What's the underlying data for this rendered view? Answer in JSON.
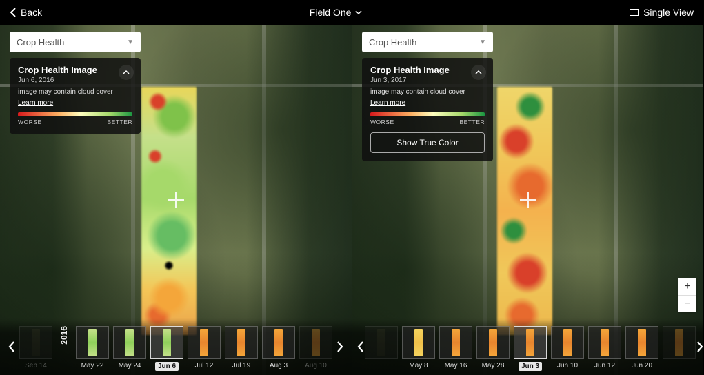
{
  "topbar": {
    "back_label": "Back",
    "field_name": "Field One",
    "single_view_label": "Single View"
  },
  "dropdown": {
    "label": "Crop Health"
  },
  "legend": {
    "worse": "WORSE",
    "better": "BETTER",
    "gradient_colors": [
      "#d7191c",
      "#fdae61",
      "#ffffbf",
      "#a6d96a",
      "#1a9641"
    ]
  },
  "left": {
    "card": {
      "title": "Crop Health Image",
      "date": "Jun 6, 2016",
      "note": "image may contain cloud cover",
      "learn": "Learn more"
    },
    "timeline": {
      "year": "2016",
      "items": [
        {
          "label": "Sep 14",
          "grad": "sg-dark",
          "dim": true,
          "selected": false
        },
        {
          "label": "May 22",
          "grad": "sg-green",
          "dim": false,
          "selected": false
        },
        {
          "label": "May 24",
          "grad": "sg-green",
          "dim": false,
          "selected": false
        },
        {
          "label": "Jun 6",
          "grad": "sg-green",
          "dim": false,
          "selected": true
        },
        {
          "label": "Jul 12",
          "grad": "sg-orange",
          "dim": false,
          "selected": false
        },
        {
          "label": "Jul 19",
          "grad": "sg-orange",
          "dim": false,
          "selected": false
        },
        {
          "label": "Aug 3",
          "grad": "sg-orange",
          "dim": false,
          "selected": false
        },
        {
          "label": "Aug 10",
          "grad": "sg-orange",
          "dim": true,
          "selected": false
        }
      ]
    }
  },
  "right": {
    "card": {
      "title": "Crop Health Image",
      "date": "Jun 3, 2017",
      "note": "image may contain cloud cover",
      "learn": "Learn more",
      "true_color": "Show True Color"
    },
    "timeline": {
      "items": [
        {
          "label": "",
          "grad": "sg-dark",
          "dim": true,
          "selected": false
        },
        {
          "label": "May 8",
          "grad": "sg-yellow",
          "dim": false,
          "selected": false
        },
        {
          "label": "May 16",
          "grad": "sg-orange",
          "dim": false,
          "selected": false
        },
        {
          "label": "May 28",
          "grad": "sg-orange",
          "dim": false,
          "selected": false
        },
        {
          "label": "Jun 3",
          "grad": "sg-orange",
          "dim": false,
          "selected": true
        },
        {
          "label": "Jun 10",
          "grad": "sg-orange",
          "dim": false,
          "selected": false
        },
        {
          "label": "Jun 12",
          "grad": "sg-orange",
          "dim": false,
          "selected": false
        },
        {
          "label": "Jun 20",
          "grad": "sg-orange",
          "dim": false,
          "selected": false
        },
        {
          "label": "",
          "grad": "sg-orange",
          "dim": true,
          "selected": false
        }
      ]
    }
  },
  "zoom": {
    "in": "+",
    "out": "−"
  },
  "colors": {
    "background": "#000000",
    "card_bg": "rgba(15,15,15,0.85)",
    "dropdown_bg": "#ffffff"
  }
}
